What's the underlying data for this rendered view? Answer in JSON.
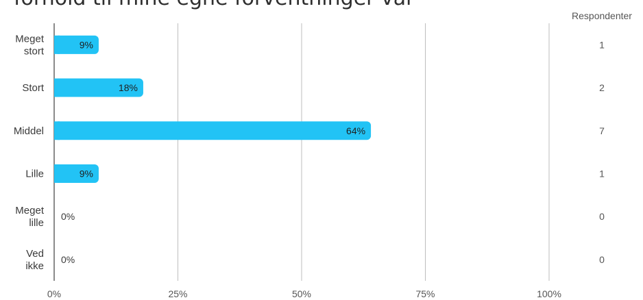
{
  "title": "forhold til mine egne forventninger var",
  "chart_data": {
    "type": "bar",
    "orientation": "horizontal",
    "categories": [
      [
        "Meget",
        "stort"
      ],
      [
        "Stort"
      ],
      [
        "Middel"
      ],
      [
        "Lille"
      ],
      [
        "Meget",
        "lille"
      ],
      [
        "Ved",
        "ikke"
      ]
    ],
    "values": [
      9,
      18,
      64,
      9,
      0,
      0
    ],
    "value_labels": [
      "9%",
      "18%",
      "64%",
      "9%",
      "0%",
      "0%"
    ],
    "respondents_header": "Respondenter",
    "respondents": [
      "1",
      "2",
      "7",
      "1",
      "0",
      "0"
    ],
    "xlim": [
      0,
      100
    ],
    "xticks": [
      "0%",
      "25%",
      "50%",
      "75%",
      "100%"
    ],
    "grid": true,
    "bar_color": "#22c3f5",
    "grid_color": "#bdbdbd",
    "axis_color": "#8a8a8a"
  }
}
